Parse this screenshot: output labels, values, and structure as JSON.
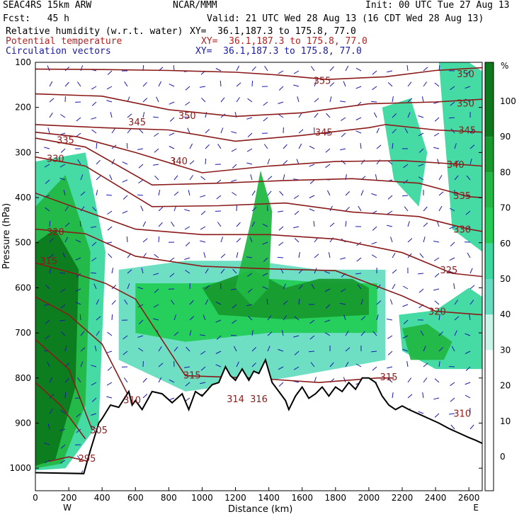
{
  "header": {
    "model": "SEAC4RS 15km ARW",
    "org": "NCAR/MMM",
    "init": "Init: 00 UTC Tue 27 Aug 13",
    "fcst": "Fcst:   45 h",
    "valid": "Valid: 21 UTC Wed 28 Aug 13 (16 CDT Wed 28 Aug 13)",
    "field1": "Relative humidity (w.r.t. water)",
    "field2": "Potential temperature",
    "field3": "Circulation vectors",
    "xy1": "XY=  36.1,187.3 to 175.8, 77.0",
    "xy2": "XY=  36.1,187.3 to 175.8, 77.0",
    "xy3": "XY=  36.1,187.3 to 175.8, 77.0"
  },
  "colors": {
    "theta": "#8b1a1a",
    "vectors": "#1a1ab0",
    "terrain_line": "#000000",
    "rh_bins": [
      "#ffffff",
      "#c8f5e8",
      "#66ddc0",
      "#3cd8a0",
      "#22cc55",
      "#22b844",
      "#169a2e",
      "#0c7a1c"
    ]
  },
  "chart_data": {
    "type": "cross-section",
    "ylabel": "Pressure (hPa)",
    "xlabel": "Distance (km)",
    "xlim": [
      0,
      2680
    ],
    "ylim": [
      1050,
      100
    ],
    "x_ticks": [
      0,
      200,
      400,
      600,
      800,
      1000,
      1200,
      1400,
      1600,
      1800,
      2000,
      2200,
      2400,
      2600
    ],
    "y_ticks": [
      100,
      200,
      300,
      400,
      500,
      600,
      700,
      800,
      900,
      1000
    ],
    "x_end_labels": [
      "W",
      "E"
    ],
    "colorbar": {
      "unit": "%",
      "ticks": [
        100,
        90,
        80,
        70,
        60,
        50,
        40,
        30,
        20,
        10,
        0
      ],
      "bins": [
        [
          0,
          30
        ],
        [
          30,
          40
        ],
        [
          40,
          50
        ],
        [
          50,
          60
        ],
        [
          60,
          70
        ],
        [
          70,
          80
        ],
        [
          80,
          90
        ],
        [
          90,
          110
        ]
      ]
    },
    "terrain_surface_pressure": {
      "x": [
        0,
        290,
        330,
        380,
        400,
        450,
        500,
        560,
        580,
        600,
        640,
        700,
        760,
        820,
        880,
        920,
        960,
        1000,
        1060,
        1100,
        1140,
        1170,
        1200,
        1240,
        1280,
        1310,
        1340,
        1380,
        1420,
        1460,
        1500,
        1520,
        1560,
        1600,
        1640,
        1680,
        1720,
        1760,
        1800,
        1840,
        1880,
        1920,
        1960,
        2000,
        2040,
        2080,
        2120,
        2160,
        2200,
        2240,
        2300,
        2360,
        2420,
        2480,
        2540,
        2600,
        2640,
        2680
      ],
      "y": [
        1010,
        1012,
        960,
        900,
        890,
        860,
        865,
        830,
        860,
        850,
        870,
        830,
        835,
        855,
        835,
        870,
        830,
        840,
        815,
        810,
        775,
        795,
        805,
        780,
        805,
        785,
        790,
        760,
        810,
        830,
        850,
        870,
        840,
        820,
        845,
        835,
        820,
        840,
        820,
        830,
        810,
        825,
        800,
        800,
        810,
        840,
        860,
        870,
        862,
        870,
        880,
        890,
        900,
        912,
        922,
        932,
        938,
        945
      ]
    },
    "theta_labels": [
      {
        "value": 355,
        "x": 1720,
        "p": 140
      },
      {
        "value": 350,
        "x": 2580,
        "p": 125
      },
      {
        "value": 350,
        "x": 2580,
        "p": 190
      },
      {
        "value": 350,
        "x": 910,
        "p": 218
      },
      {
        "value": 345,
        "x": 610,
        "p": 232
      },
      {
        "value": 345,
        "x": 1730,
        "p": 255
      },
      {
        "value": 345,
        "x": 2590,
        "p": 250
      },
      {
        "value": 340,
        "x": 860,
        "p": 318
      },
      {
        "value": 340,
        "x": 2520,
        "p": 326
      },
      {
        "value": 335,
        "x": 180,
        "p": 272
      },
      {
        "value": 335,
        "x": 2560,
        "p": 395
      },
      {
        "value": 330,
        "x": 120,
        "p": 313
      },
      {
        "value": 330,
        "x": 2560,
        "p": 470
      },
      {
        "value": 325,
        "x": 2480,
        "p": 560
      },
      {
        "value": 320,
        "x": 120,
        "p": 475
      },
      {
        "value": 320,
        "x": 2410,
        "p": 652
      },
      {
        "value": 315,
        "x": 80,
        "p": 540
      },
      {
        "value": 315,
        "x": 940,
        "p": 793
      },
      {
        "value": 315,
        "x": 2120,
        "p": 797
      },
      {
        "value": 314,
        "x": 1200,
        "p": 846
      },
      {
        "value": 316,
        "x": 1340,
        "p": 846
      },
      {
        "value": 310,
        "x": 580,
        "p": 848
      },
      {
        "value": 310,
        "x": 2560,
        "p": 878
      },
      {
        "value": 305,
        "x": 380,
        "p": 915
      },
      {
        "value": 295,
        "x": 310,
        "p": 978
      }
    ],
    "theta_isolines": [
      {
        "value": 355,
        "x": [
          0,
          400,
          800,
          1200,
          1450,
          1750,
          2100,
          2400,
          2680
        ],
        "p": [
          115,
          116,
          118,
          122,
          128,
          138,
          132,
          118,
          112
        ]
      },
      {
        "value": 350,
        "x": [
          0,
          400,
          800,
          1200,
          1600,
          2000,
          2400,
          2680
        ],
        "p": [
          170,
          175,
          205,
          220,
          212,
          192,
          188,
          182
        ]
      },
      {
        "value": 345,
        "x": [
          0,
          400,
          800,
          1200,
          1600,
          2000,
          2100,
          2400,
          2680
        ],
        "p": [
          238,
          245,
          250,
          275,
          262,
          245,
          238,
          250,
          255
        ]
      },
      {
        "value": 340,
        "x": [
          0,
          250,
          600,
          1000,
          1400,
          1800,
          2200,
          2500,
          2680
        ],
        "p": [
          255,
          265,
          300,
          345,
          330,
          320,
          318,
          325,
          330
        ]
      },
      {
        "value": 335,
        "x": [
          0,
          300,
          700,
          1100,
          1500,
          1900,
          2300,
          2600,
          2680
        ],
        "p": [
          268,
          288,
          372,
          368,
          362,
          358,
          368,
          398,
          400
        ]
      },
      {
        "value": 330,
        "x": [
          0,
          300,
          700,
          1100,
          1500,
          1900,
          2300,
          2600,
          2680
        ],
        "p": [
          310,
          330,
          420,
          418,
          412,
          432,
          442,
          470,
          475
        ]
      },
      {
        "value": 325,
        "x": [
          0,
          300,
          600,
          1000,
          1400,
          1800,
          2200,
          2500,
          2680
        ],
        "p": [
          390,
          430,
          470,
          482,
          482,
          492,
          522,
          568,
          575
        ]
      },
      {
        "value": 320,
        "x": [
          0,
          300,
          600,
          1000,
          1400,
          1800,
          2200,
          2400,
          2680
        ],
        "p": [
          470,
          480,
          530,
          552,
          558,
          562,
          618,
          652,
          660
        ]
      },
      {
        "value": 315,
        "x": [
          0,
          250,
          420,
          600,
          900,
          1300,
          1700,
          2050,
          2150
        ],
        "p": [
          545,
          570,
          590,
          625,
          795,
          800,
          810,
          800,
          800
        ]
      },
      {
        "value": 310,
        "x": [
          0,
          200,
          400,
          600
        ],
        "p": [
          620,
          660,
          725,
          870
        ]
      },
      {
        "value": 305,
        "x": [
          0,
          200,
          340
        ],
        "p": [
          715,
          780,
          915
        ]
      },
      {
        "value": 300,
        "x": [
          0,
          150,
          300
        ],
        "p": [
          810,
          860,
          935
        ]
      },
      {
        "value": 295,
        "x": [
          80,
          200,
          320
        ],
        "p": [
          985,
          975,
          985
        ]
      }
    ],
    "rh_moist_regions": [
      {
        "bin": 3,
        "x": [
          0,
          300,
          420,
          380,
          180,
          0
        ],
        "p": [
          320,
          300,
          520,
          900,
          1000,
          1005
        ]
      },
      {
        "bin": 5,
        "x": [
          0,
          180,
          330,
          300,
          160,
          0
        ],
        "p": [
          420,
          350,
          520,
          860,
          990,
          1000
        ]
      },
      {
        "bin": 7,
        "x": [
          0,
          120,
          260,
          240,
          120,
          0
        ],
        "p": [
          500,
          470,
          560,
          820,
          980,
          995
        ]
      },
      {
        "bin": 2,
        "x": [
          500,
          900,
          1300,
          1700,
          2100,
          2100,
          1500,
          900,
          500
        ],
        "p": [
          560,
          540,
          540,
          560,
          560,
          760,
          800,
          830,
          760
        ]
      },
      {
        "bin": 4,
        "x": [
          600,
          1000,
          1400,
          1800,
          2050,
          2050,
          1400,
          900,
          600
        ],
        "p": [
          590,
          590,
          580,
          590,
          590,
          700,
          700,
          720,
          700
        ]
      },
      {
        "bin": 6,
        "x": [
          1000,
          1150,
          1300,
          1500,
          1700,
          1900,
          2000,
          2000,
          1500,
          1100
        ],
        "p": [
          600,
          580,
          560,
          600,
          580,
          580,
          600,
          660,
          670,
          660
        ]
      },
      {
        "bin": 5,
        "x": [
          1200,
          1300,
          1350,
          1420,
          1400,
          1300
        ],
        "p": [
          600,
          440,
          340,
          430,
          600,
          640
        ]
      },
      {
        "bin": 3,
        "x": [
          2180,
          2400,
          2600,
          2680,
          2680,
          2400,
          2200
        ],
        "p": [
          660,
          650,
          600,
          620,
          780,
          780,
          740
        ]
      },
      {
        "bin": 5,
        "x": [
          2200,
          2350,
          2500,
          2450,
          2250
        ],
        "p": [
          690,
          680,
          720,
          760,
          760
        ]
      },
      {
        "bin": 3,
        "x": [
          2080,
          2250,
          2350,
          2300,
          2150
        ],
        "p": [
          200,
          180,
          300,
          420,
          360
        ]
      },
      {
        "bin": 3,
        "x": [
          2420,
          2600,
          2680,
          2680,
          2500
        ],
        "p": [
          100,
          100,
          120,
          520,
          470
        ]
      }
    ]
  }
}
